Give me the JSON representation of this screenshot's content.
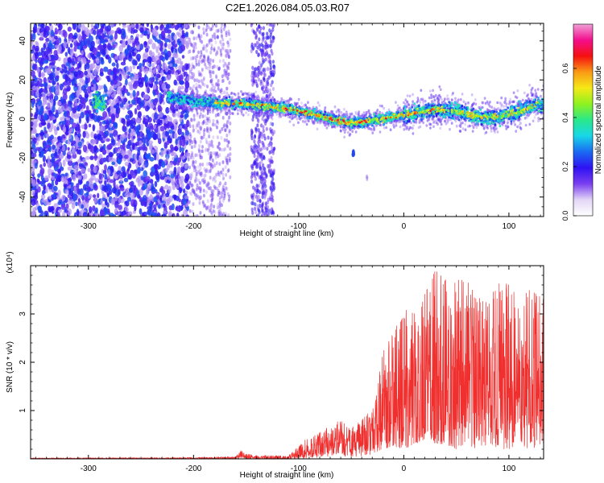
{
  "title": "C2E1.2026.084.05.03.R07",
  "chart_data": [
    {
      "type": "heatmap",
      "xlabel": "Height of straight line (km)",
      "ylabel": "Frequency (Hz)",
      "xlim": [
        -355,
        133
      ],
      "ylim": [
        -50,
        49
      ],
      "xticks": [
        -300,
        -200,
        -100,
        0,
        100
      ],
      "yticks": [
        -40,
        -20,
        0,
        20,
        40
      ],
      "xtick_labels": [
        "-300",
        "-200",
        "-100",
        "0",
        "100"
      ],
      "ytick_labels": [
        "-40",
        "-20",
        "0",
        "20",
        "40"
      ],
      "colorbar": {
        "label": "Normalized spectral amplitude",
        "range": [
          0.0,
          0.78
        ],
        "ticks": [
          0.0,
          0.2,
          0.4,
          0.6
        ],
        "tick_labels": [
          "0.0",
          "0.2",
          "0.4",
          "0.6"
        ],
        "colormap": [
          "#ffffff",
          "#e2d6f6",
          "#7a3ff0",
          "#2f12f2",
          "#1a6af2",
          "#18d7e8",
          "#29e88a",
          "#8ef21f",
          "#f6e817",
          "#f99a15",
          "#f51010",
          "#f30f8c",
          "#f0a0d8"
        ]
      },
      "ridge": [
        {
          "x": -225,
          "y": 11
        },
        {
          "x": -200,
          "y": 9
        },
        {
          "x": -175,
          "y": 8
        },
        {
          "x": -150,
          "y": 8
        },
        {
          "x": -125,
          "y": 6
        },
        {
          "x": -110,
          "y": 5
        },
        {
          "x": -90,
          "y": 3
        },
        {
          "x": -70,
          "y": 0
        },
        {
          "x": -50,
          "y": -2
        },
        {
          "x": -30,
          "y": -1
        },
        {
          "x": -10,
          "y": 1
        },
        {
          "x": 10,
          "y": 3
        },
        {
          "x": 30,
          "y": 5
        },
        {
          "x": 50,
          "y": 4
        },
        {
          "x": 70,
          "y": 1
        },
        {
          "x": 90,
          "y": 1
        },
        {
          "x": 110,
          "y": 4
        },
        {
          "x": 130,
          "y": 8
        }
      ],
      "isolated_features": [
        {
          "x": -290,
          "y": 9,
          "note": "blob near -290 km"
        },
        {
          "x": -48,
          "y": -18,
          "note": "blue streak"
        },
        {
          "x": -35,
          "y": -30,
          "note": "faint streak"
        }
      ]
    },
    {
      "type": "line",
      "xlabel": "Height of straight line (km)",
      "ylabel": "SNR (10 * v/v)",
      "multiplier": "(x10⁴)",
      "xlim": [
        -355,
        133
      ],
      "ylim": [
        0,
        4.0
      ],
      "xticks": [
        -300,
        -200,
        -100,
        0,
        100
      ],
      "yticks": [
        1,
        2,
        3
      ],
      "xtick_labels": [
        "-300",
        "-200",
        "-100",
        "0",
        "100"
      ],
      "ytick_labels": [
        "1",
        "2",
        "3"
      ],
      "color": "#f0302f",
      "envelope": {
        "x": [
          -355,
          -200,
          -160,
          -155,
          -145,
          -110,
          -100,
          -90,
          -80,
          -70,
          -60,
          -50,
          -40,
          -30,
          -20,
          -10,
          0,
          10,
          20,
          30,
          40,
          50,
          60,
          70,
          80,
          90,
          100,
          110,
          120,
          133
        ],
        "y_max": [
          0.02,
          0.03,
          0.05,
          0.18,
          0.08,
          0.06,
          0.3,
          0.45,
          0.55,
          0.7,
          0.8,
          0.65,
          0.8,
          1.05,
          2.2,
          2.6,
          3.1,
          3.0,
          3.4,
          3.9,
          3.7,
          3.7,
          3.7,
          3.3,
          3.4,
          3.7,
          3.6,
          3.3,
          3.5,
          3.3
        ],
        "y_min": [
          0.0,
          0.0,
          0.0,
          0.02,
          0.0,
          0.0,
          0.0,
          0.02,
          0.03,
          0.05,
          0.05,
          0.05,
          0.05,
          0.1,
          0.2,
          0.25,
          0.2,
          0.3,
          0.4,
          0.3,
          0.3,
          0.2,
          0.3,
          0.2,
          0.3,
          0.2,
          0.2,
          0.3,
          0.2,
          0.3
        ]
      }
    }
  ]
}
